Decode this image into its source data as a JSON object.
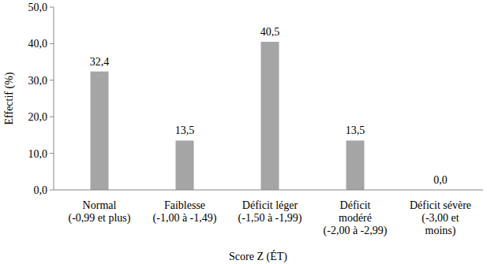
{
  "chart_data": {
    "type": "bar",
    "categories": [
      "Normal\n(-0,99 et plus)",
      "Faiblesse\n(-1,00 à -1,49)",
      "Déficit léger\n(-1,50 à -1,99)",
      "Déficit\nmodéré\n(-2,00 à -2,99)",
      "Déficit sévère\n(-3,00 et\nmoins)"
    ],
    "values": [
      32.4,
      13.5,
      40.5,
      13.5,
      0.0
    ],
    "value_labels": [
      "32,4",
      "13,5",
      "40,5",
      "13,5",
      "0,0"
    ],
    "data_labels": true,
    "color": "#a5a5a5",
    "ylim": [
      0,
      50
    ],
    "yticks": [
      {
        "value": 0,
        "label": "0,0"
      },
      {
        "value": 10,
        "label": "10,0"
      },
      {
        "value": 20,
        "label": "20,0"
      },
      {
        "value": 30,
        "label": "30,0"
      },
      {
        "value": 40,
        "label": "40,0"
      },
      {
        "value": 50,
        "label": "50,0"
      }
    ],
    "xlabel": "Score Z (ÉT)",
    "ylabel": "Effectif (%)",
    "grid": false
  }
}
